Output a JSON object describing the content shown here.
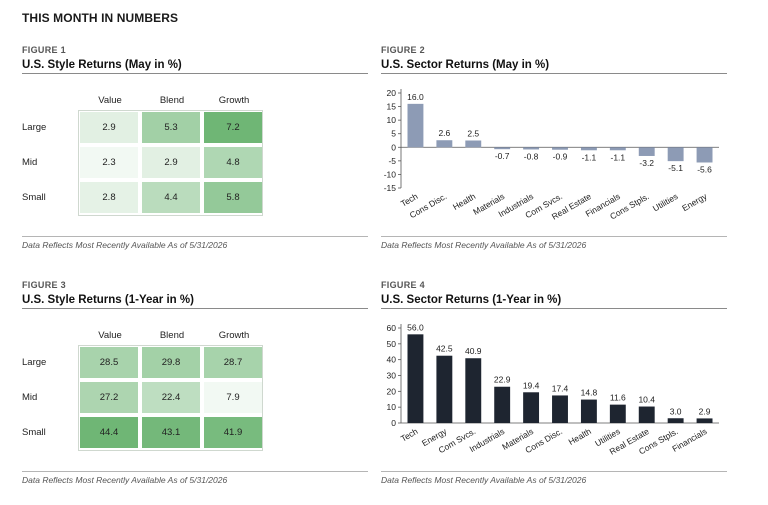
{
  "page_title": "THIS MONTH IN NUMBERS",
  "footnote": "Data Reflects Most Recently Available As of 5/31/2026",
  "colors": {
    "style_dark": "#5fae66",
    "style_light": "#ffffff",
    "may_bar": "#8d9bb5",
    "year_bar": "#1e2530"
  },
  "figures": [
    {
      "label": "FIGURE 1",
      "title": "U.S. Style Returns (May in %)"
    },
    {
      "label": "FIGURE 2",
      "title": "U.S. Sector Returns (May in %)"
    },
    {
      "label": "FIGURE 3",
      "title": "U.S. Style Returns (1-Year in %)"
    },
    {
      "label": "FIGURE 4",
      "title": "U.S. Sector Returns (1-Year in %)"
    }
  ],
  "chart_data": [
    {
      "type": "heatmap",
      "title": "U.S. Style Returns (May in %)",
      "columns": [
        "Value",
        "Blend",
        "Growth"
      ],
      "rows": [
        "Large",
        "Mid",
        "Small"
      ],
      "values": [
        [
          2.9,
          5.3,
          7.2
        ],
        [
          2.3,
          2.9,
          4.8
        ],
        [
          2.8,
          4.4,
          5.8
        ]
      ]
    },
    {
      "type": "bar",
      "title": "U.S. Sector Returns (May in %)",
      "categories": [
        "Tech",
        "Cons Disc.",
        "Health",
        "Materials",
        "Industrials",
        "Com Svcs.",
        "Real Estate",
        "Financials",
        "Cons Stpls.",
        "Utilities",
        "Energy"
      ],
      "values": [
        16.0,
        2.6,
        2.5,
        -0.7,
        -0.8,
        -0.9,
        -1.1,
        -1.1,
        -3.2,
        -5.1,
        -5.6
      ],
      "ylim": [
        -15,
        20
      ],
      "yticks": [
        20,
        15,
        10,
        5,
        0,
        -5,
        -10,
        -15
      ],
      "grid": false
    },
    {
      "type": "heatmap",
      "title": "U.S. Style Returns (1-Year in %)",
      "columns": [
        "Value",
        "Blend",
        "Growth"
      ],
      "rows": [
        "Large",
        "Mid",
        "Small"
      ],
      "values": [
        [
          28.5,
          29.8,
          28.7
        ],
        [
          27.2,
          22.4,
          7.9
        ],
        [
          44.4,
          43.1,
          41.9
        ]
      ]
    },
    {
      "type": "bar",
      "title": "U.S. Sector Returns (1-Year in %)",
      "categories": [
        "Tech",
        "Energy",
        "Com Svcs.",
        "Industrials",
        "Materials",
        "Cons Disc.",
        "Health",
        "Utilities",
        "Real Estate",
        "Cons Stpls.",
        "Financials"
      ],
      "values": [
        56.0,
        42.5,
        40.9,
        22.9,
        19.4,
        17.4,
        14.8,
        11.6,
        10.4,
        3.0,
        2.9
      ],
      "ylim": [
        0,
        60
      ],
      "yticks": [
        60,
        50,
        40,
        30,
        20,
        10,
        0
      ],
      "grid": false
    }
  ]
}
